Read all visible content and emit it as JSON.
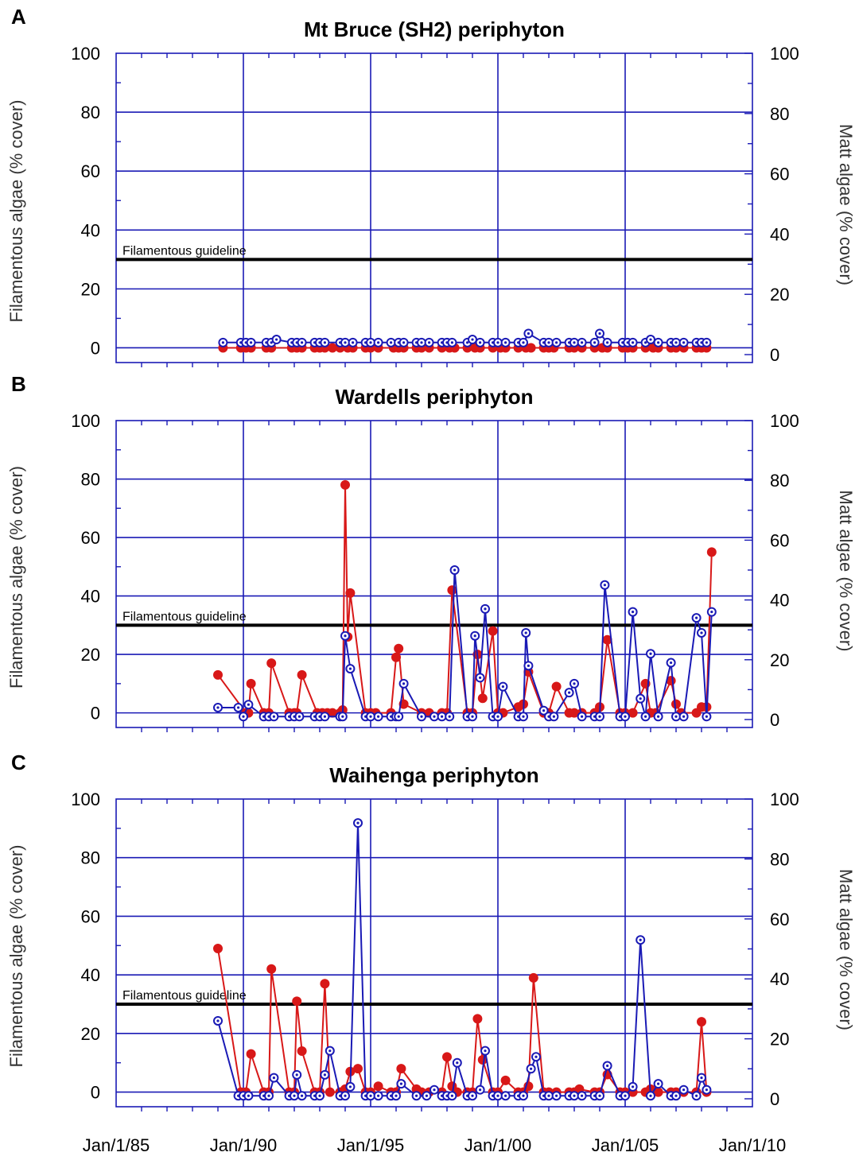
{
  "figure": {
    "date_ticks": [
      "Jan/1/85",
      "Jan/1/90",
      "Jan/1/95",
      "Jan/1/00",
      "Jan/1/05",
      "Jan/1/10"
    ]
  },
  "colors": {
    "grid": "#1a1ab5",
    "filamentous": "#d81818",
    "matt": "#1a1ab5",
    "guideline": "#000000"
  },
  "chart_data": [
    {
      "type": "line",
      "panel": "A",
      "title": "Mt Bruce (SH2) periphyton",
      "xlabel": "",
      "ylabel_left": "Filamentous algae (% cover)",
      "ylabel_right": "Matt algae (% cover)",
      "xlim": [
        1985.0,
        2010.0
      ],
      "ylim_left": [
        0,
        100
      ],
      "ylim_right": [
        0,
        100
      ],
      "guideline": {
        "label": "Filamentous guideline",
        "value": 30
      },
      "series": [
        {
          "axis": "left",
          "color": "#d81818",
          "x": [
            1989.2,
            1989.9,
            1990.1,
            1990.3,
            1990.9,
            1991.1,
            1991.9,
            1992.1,
            1992.3,
            1992.8,
            1993.0,
            1993.2,
            1993.5,
            1993.8,
            1994.1,
            1994.3,
            1994.8,
            1995.0,
            1995.3,
            1995.9,
            1996.1,
            1996.3,
            1996.8,
            1997.0,
            1997.3,
            1997.8,
            1998.1,
            1998.3,
            1998.8,
            1999.1,
            1999.3,
            1999.8,
            2000.1,
            2000.3,
            2000.8,
            2001.1,
            2001.3,
            2001.8,
            2002.0,
            2002.2,
            2002.8,
            2003.0,
            2003.3,
            2003.8,
            2004.1,
            2004.3,
            2004.9,
            2005.1,
            2005.3,
            2005.8,
            2006.1,
            2006.3,
            2006.8,
            2007.0,
            2007.3,
            2007.8,
            2008.0,
            2008.2
          ],
          "y": [
            0,
            0,
            0,
            0,
            0,
            0,
            0,
            0,
            0,
            0,
            0,
            0,
            0,
            0,
            0,
            0,
            0,
            0,
            0,
            0,
            0,
            0,
            0,
            0,
            0,
            0,
            0,
            0,
            0,
            0,
            0,
            0,
            0,
            0,
            0,
            0,
            0,
            0,
            0,
            0,
            0,
            0,
            0,
            0,
            0,
            0,
            0,
            0,
            0,
            0,
            0,
            0,
            0,
            0,
            0,
            0,
            0,
            0
          ]
        },
        {
          "axis": "right",
          "color": "#1a1ab5",
          "x": [
            1989.2,
            1989.9,
            1990.1,
            1990.3,
            1990.9,
            1991.1,
            1991.3,
            1991.9,
            1992.1,
            1992.3,
            1992.8,
            1993.0,
            1993.2,
            1993.8,
            1994.0,
            1994.3,
            1994.8,
            1995.0,
            1995.3,
            1995.8,
            1996.1,
            1996.3,
            1996.8,
            1997.0,
            1997.3,
            1997.8,
            1998.0,
            1998.2,
            1998.8,
            1999.0,
            1999.3,
            1999.8,
            2000.0,
            2000.3,
            2000.8,
            2001.0,
            2001.2,
            2001.8,
            2002.0,
            2002.3,
            2002.8,
            2003.0,
            2003.3,
            2003.8,
            2004.0,
            2004.3,
            2004.9,
            2005.1,
            2005.3,
            2005.8,
            2006.0,
            2006.3,
            2006.8,
            2007.0,
            2007.3,
            2007.8,
            2008.0,
            2008.2
          ],
          "y": [
            4,
            4,
            4,
            4,
            4,
            4,
            5,
            4,
            4,
            4,
            4,
            4,
            4,
            4,
            4,
            4,
            4,
            4,
            4,
            4,
            4,
            4,
            4,
            4,
            4,
            4,
            4,
            4,
            4,
            5,
            4,
            4,
            4,
            4,
            4,
            4,
            7,
            4,
            4,
            4,
            4,
            4,
            4,
            4,
            7,
            4,
            4,
            4,
            4,
            4,
            5,
            4,
            4,
            4,
            4,
            4,
            4,
            4
          ]
        }
      ]
    },
    {
      "type": "line",
      "panel": "B",
      "title": "Wardells periphyton",
      "xlabel": "",
      "ylabel_left": "Filamentous algae (% cover)",
      "ylabel_right": "Matt algae (% cover)",
      "xlim": [
        1985.0,
        2010.0
      ],
      "ylim_left": [
        0,
        100
      ],
      "ylim_right": [
        0,
        100
      ],
      "guideline": {
        "label": "Filamentous guideline",
        "value": 30
      },
      "series": [
        {
          "axis": "left",
          "color": "#d81818",
          "x": [
            1989.0,
            1990.1,
            1990.2,
            1990.3,
            1990.8,
            1991.0,
            1991.1,
            1991.8,
            1992.0,
            1992.1,
            1992.3,
            1992.9,
            1993.1,
            1993.3,
            1993.5,
            1993.8,
            1993.9,
            1994.0,
            1994.1,
            1994.2,
            1994.8,
            1995.0,
            1995.2,
            1995.8,
            1996.0,
            1996.1,
            1996.3,
            1997.0,
            1997.3,
            1997.8,
            1998.0,
            1998.2,
            1998.8,
            1999.0,
            1999.2,
            1999.4,
            1999.8,
            2000.0,
            2000.2,
            2000.8,
            2001.0,
            2001.2,
            2001.8,
            2002.0,
            2002.3,
            2002.8,
            2003.0,
            2003.3,
            2003.8,
            2004.0,
            2004.3,
            2004.8,
            2005.0,
            2005.3,
            2005.8,
            2006.0,
            2006.2,
            2006.8,
            2007.0,
            2007.2,
            2007.8,
            2008.0,
            2008.2,
            2008.4
          ],
          "y": [
            13,
            0,
            0,
            10,
            0,
            0,
            17,
            0,
            0,
            0,
            13,
            0,
            0,
            0,
            0,
            0,
            1,
            78,
            26,
            41,
            0,
            0,
            0,
            0,
            19,
            22,
            3,
            0,
            0,
            0,
            0,
            42,
            0,
            0,
            20,
            5,
            28,
            0,
            0,
            2,
            3,
            14,
            0,
            0,
            9,
            0,
            0,
            0,
            0,
            2,
            25,
            0,
            0,
            0,
            10,
            0,
            0,
            11,
            3,
            0,
            0,
            2,
            2,
            55
          ]
        },
        {
          "axis": "right",
          "color": "#1a1ab5",
          "x": [
            1989.0,
            1989.8,
            1990.0,
            1990.2,
            1990.8,
            1991.0,
            1991.2,
            1991.8,
            1992.0,
            1992.2,
            1992.8,
            1993.0,
            1993.2,
            1993.8,
            1993.9,
            1994.0,
            1994.2,
            1994.8,
            1995.0,
            1995.3,
            1995.8,
            1996.0,
            1996.1,
            1996.3,
            1997.0,
            1997.5,
            1997.8,
            1998.1,
            1998.3,
            1998.8,
            1999.0,
            1999.1,
            1999.3,
            1999.5,
            1999.8,
            2000.0,
            2000.2,
            2000.8,
            2001.0,
            2001.1,
            2001.2,
            2001.8,
            2002.0,
            2002.2,
            2002.8,
            2003.0,
            2003.3,
            2003.8,
            2004.0,
            2004.2,
            2004.8,
            2005.0,
            2005.3,
            2005.6,
            2005.8,
            2006.0,
            2006.3,
            2006.8,
            2007.0,
            2007.3,
            2007.8,
            2008.0,
            2008.2,
            2008.4
          ],
          "y": [
            4,
            4,
            1,
            5,
            1,
            1,
            1,
            1,
            1,
            1,
            1,
            1,
            1,
            1,
            1,
            28,
            17,
            1,
            1,
            1,
            1,
            1,
            1,
            12,
            1,
            1,
            1,
            1,
            50,
            1,
            1,
            28,
            14,
            37,
            1,
            1,
            11,
            1,
            1,
            29,
            18,
            3,
            1,
            1,
            9,
            12,
            1,
            1,
            1,
            45,
            1,
            1,
            36,
            7,
            1,
            22,
            1,
            19,
            1,
            1,
            34,
            29,
            1,
            36
          ]
        }
      ]
    },
    {
      "type": "line",
      "panel": "C",
      "title": "Waihenga periphyton",
      "xlabel": "",
      "ylabel_left": "Filamentous algae (% cover)",
      "ylabel_right": "Matt algae (% cover)",
      "xlim": [
        1985.0,
        2010.0
      ],
      "ylim_left": [
        0,
        100
      ],
      "ylim_right": [
        0,
        100
      ],
      "guideline": {
        "label": "Filamentous guideline",
        "value": 30
      },
      "series": [
        {
          "axis": "left",
          "color": "#d81818",
          "x": [
            1989.0,
            1989.9,
            1990.1,
            1990.3,
            1990.8,
            1991.0,
            1991.1,
            1991.8,
            1992.0,
            1992.1,
            1992.3,
            1992.8,
            1993.0,
            1993.2,
            1993.4,
            1993.8,
            1994.0,
            1994.2,
            1994.5,
            1994.8,
            1995.0,
            1995.3,
            1995.8,
            1996.0,
            1996.2,
            1996.8,
            1997.0,
            1997.3,
            1997.8,
            1998.0,
            1998.2,
            1998.4,
            1998.8,
            1999.0,
            1999.2,
            1999.4,
            1999.8,
            2000.0,
            2000.3,
            2000.8,
            2001.0,
            2001.2,
            2001.4,
            2001.8,
            2002.0,
            2002.3,
            2002.8,
            2003.0,
            2003.2,
            2003.8,
            2004.0,
            2004.3,
            2004.8,
            2005.0,
            2005.3,
            2005.8,
            2006.0,
            2006.3,
            2006.8,
            2007.0,
            2007.3,
            2007.8,
            2008.0,
            2008.2
          ],
          "y": [
            49,
            0,
            0,
            13,
            0,
            0,
            42,
            0,
            0,
            31,
            14,
            0,
            0,
            37,
            0,
            0,
            1,
            7,
            8,
            0,
            0,
            2,
            0,
            0,
            8,
            1,
            0,
            0,
            0,
            12,
            2,
            0,
            0,
            0,
            25,
            11,
            0,
            0,
            4,
            0,
            0,
            2,
            39,
            0,
            0,
            0,
            0,
            0,
            1,
            0,
            0,
            6,
            0,
            0,
            0,
            0,
            1,
            0,
            0,
            0,
            0,
            0,
            24,
            0
          ]
        },
        {
          "axis": "right",
          "color": "#1a1ab5",
          "x": [
            1989.0,
            1989.8,
            1990.0,
            1990.2,
            1990.8,
            1991.0,
            1991.2,
            1991.8,
            1992.0,
            1992.1,
            1992.3,
            1992.8,
            1993.0,
            1993.2,
            1993.4,
            1993.8,
            1994.0,
            1994.2,
            1994.5,
            1994.8,
            1995.0,
            1995.3,
            1995.8,
            1996.0,
            1996.2,
            1996.8,
            1997.2,
            1997.5,
            1997.8,
            1998.0,
            1998.2,
            1998.4,
            1998.8,
            1999.0,
            1999.3,
            1999.5,
            1999.8,
            2000.0,
            2000.3,
            2000.8,
            2001.0,
            2001.3,
            2001.5,
            2001.8,
            2002.0,
            2002.3,
            2002.8,
            2003.0,
            2003.3,
            2003.8,
            2004.0,
            2004.3,
            2004.8,
            2005.0,
            2005.3,
            2005.6,
            2006.0,
            2006.3,
            2006.8,
            2007.0,
            2007.3,
            2007.8,
            2008.0,
            2008.2
          ],
          "y": [
            26,
            1,
            1,
            1,
            1,
            1,
            7,
            1,
            1,
            8,
            1,
            1,
            1,
            8,
            16,
            1,
            1,
            4,
            92,
            1,
            1,
            1,
            1,
            1,
            5,
            1,
            1,
            3,
            1,
            1,
            1,
            12,
            1,
            1,
            3,
            16,
            1,
            1,
            1,
            1,
            1,
            10,
            14,
            1,
            1,
            1,
            1,
            1,
            1,
            1,
            1,
            11,
            1,
            1,
            4,
            53,
            1,
            5,
            1,
            1,
            3,
            1,
            7,
            3
          ]
        }
      ]
    }
  ]
}
